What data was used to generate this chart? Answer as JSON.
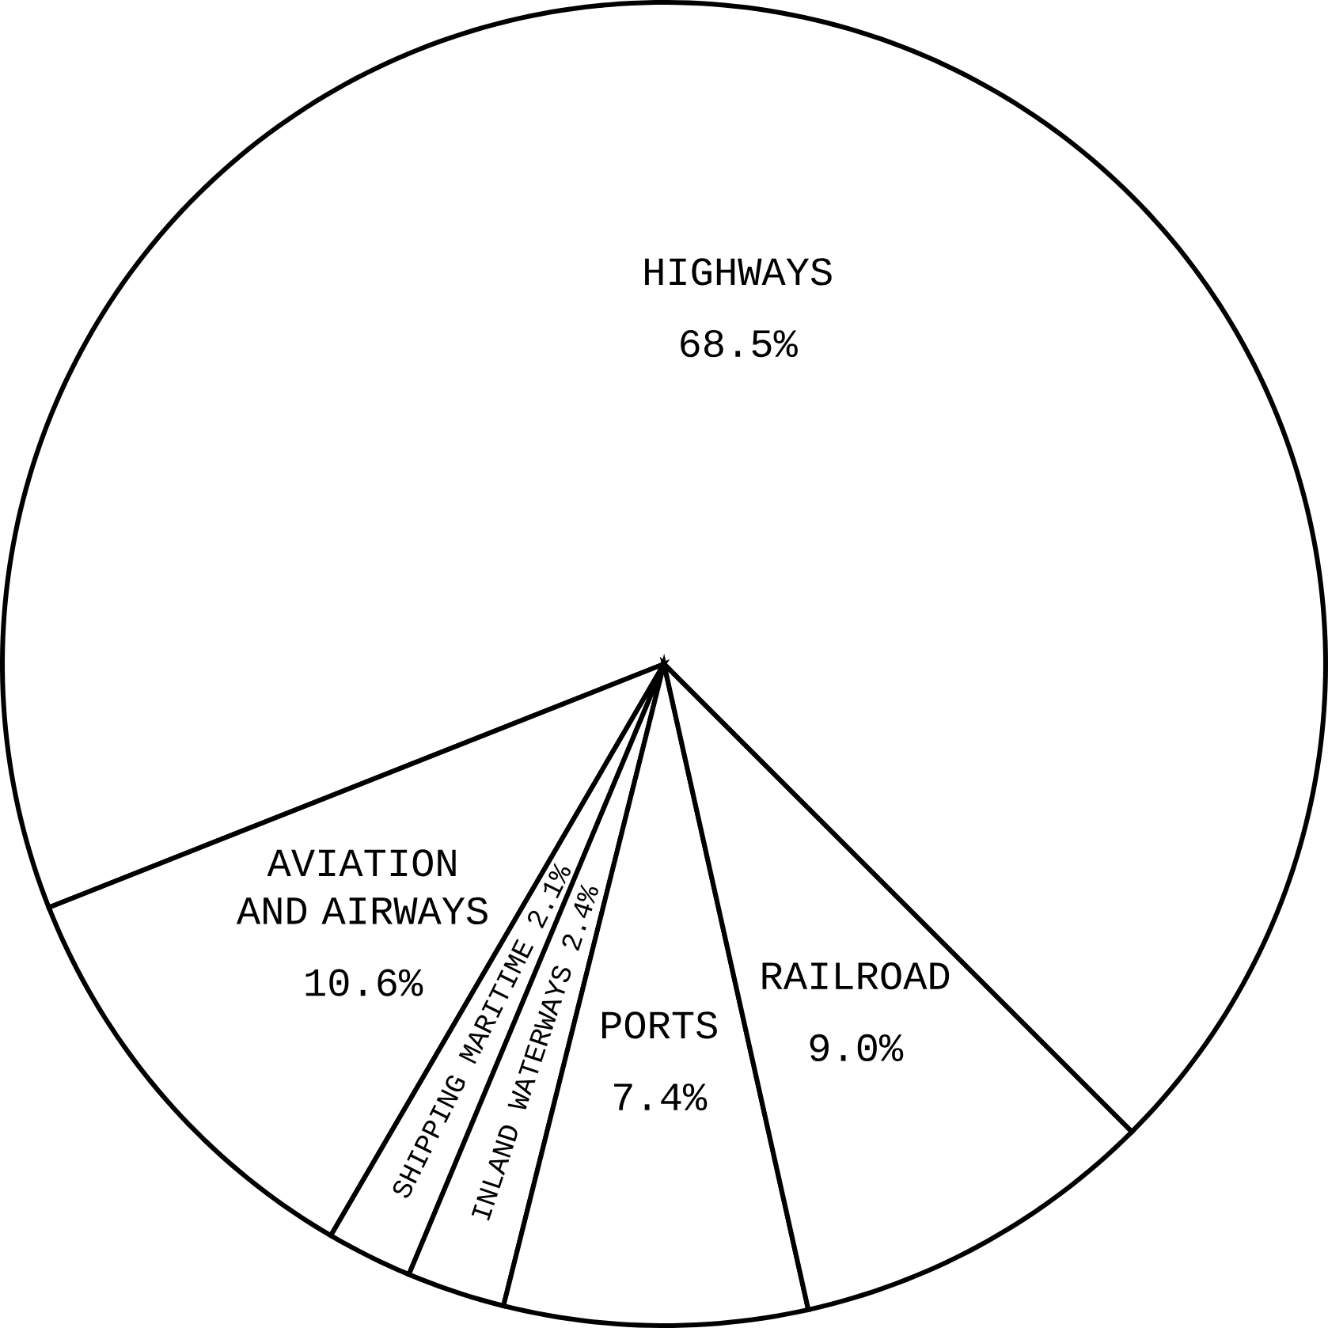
{
  "chart_data": {
    "type": "pie",
    "categories": [
      "HIGHWAYS",
      "AVIATION AND AIRWAYS",
      "SHIPPING MARITIME",
      "INLAND WATERWAYS",
      "PORTS",
      "RAILROAD"
    ],
    "values": [
      68.5,
      10.6,
      2.1,
      2.4,
      7.4,
      9.0
    ],
    "value_labels": [
      "68.5%",
      "10.6%",
      "2.1%",
      "2.4%",
      "7.4%",
      "9.0%"
    ],
    "colors": [
      "#ffffff",
      "#ffffff",
      "#ffffff",
      "#ffffff",
      "#ffffff",
      "#ffffff"
    ]
  }
}
